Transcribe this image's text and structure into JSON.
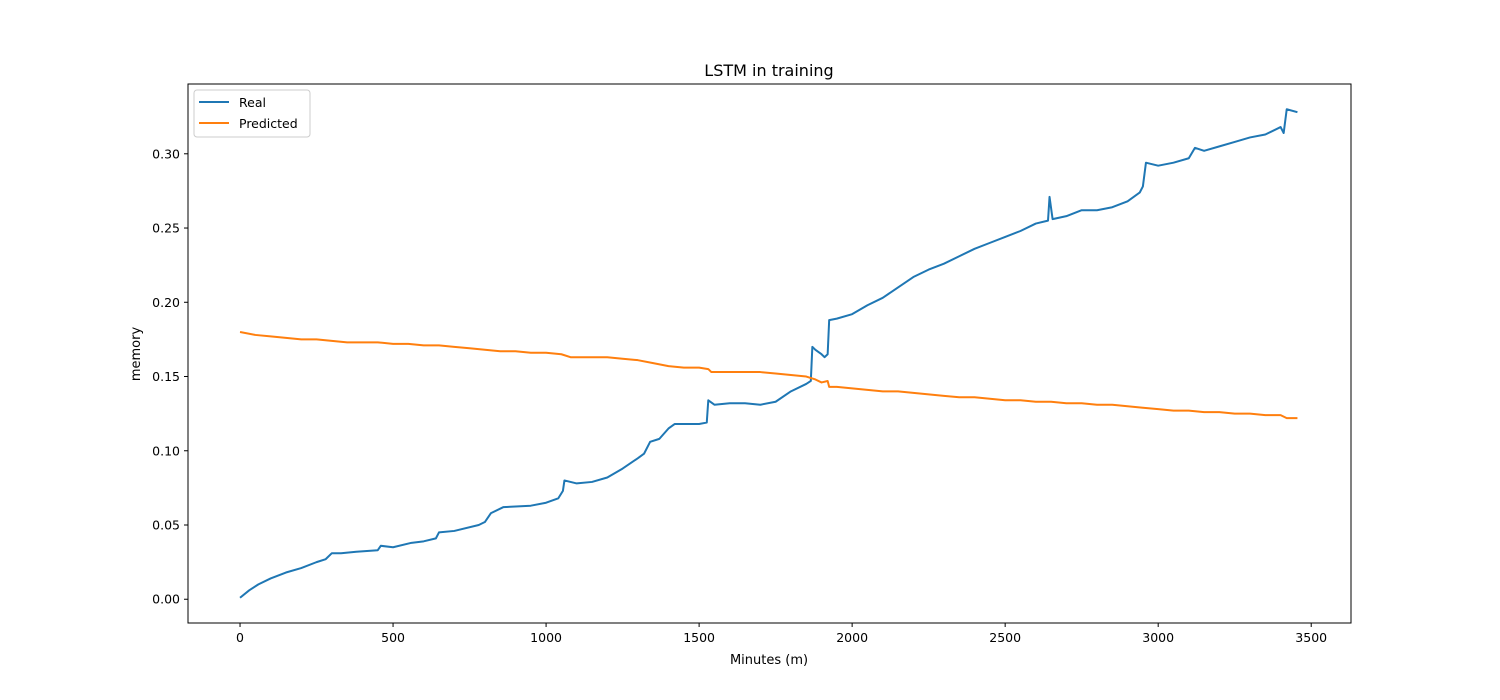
{
  "chart_data": {
    "type": "line",
    "title": "LSTM in training",
    "xlabel": "Minutes (m)",
    "ylabel": "memory",
    "xlim": [
      -170,
      3630
    ],
    "ylim": [
      -0.016,
      0.347
    ],
    "xticks": [
      0,
      500,
      1000,
      1500,
      2000,
      2500,
      3000,
      3500
    ],
    "xtick_labels": [
      "0",
      "500",
      "1000",
      "1500",
      "2000",
      "2500",
      "3000",
      "3500"
    ],
    "yticks": [
      0.0,
      0.05,
      0.1,
      0.15,
      0.2,
      0.25,
      0.3
    ],
    "ytick_labels": [
      "0.00",
      "0.05",
      "0.10",
      "0.15",
      "0.20",
      "0.25",
      "0.30"
    ],
    "grid": false,
    "legend": {
      "position": "top-left",
      "entries": [
        "Real",
        "Predicted"
      ]
    },
    "series": [
      {
        "name": "Real",
        "color": "#1f77b4",
        "x": [
          0,
          30,
          60,
          100,
          150,
          200,
          250,
          280,
          300,
          330,
          380,
          450,
          460,
          500,
          560,
          600,
          640,
          650,
          700,
          780,
          800,
          820,
          860,
          950,
          1000,
          1040,
          1055,
          1060,
          1100,
          1150,
          1200,
          1250,
          1300,
          1320,
          1340,
          1370,
          1400,
          1420,
          1450,
          1500,
          1525,
          1530,
          1550,
          1600,
          1650,
          1700,
          1750,
          1800,
          1850,
          1865,
          1870,
          1880,
          1900,
          1910,
          1920,
          1925,
          1950,
          2000,
          2050,
          2100,
          2150,
          2200,
          2250,
          2300,
          2350,
          2400,
          2450,
          2500,
          2550,
          2600,
          2640,
          2645,
          2655,
          2700,
          2750,
          2800,
          2850,
          2900,
          2940,
          2950,
          2960,
          3000,
          3050,
          3100,
          3120,
          3150,
          3200,
          3250,
          3300,
          3350,
          3400,
          3410,
          3420,
          3455
        ],
        "y": [
          0.001,
          0.006,
          0.01,
          0.014,
          0.018,
          0.021,
          0.025,
          0.027,
          0.031,
          0.031,
          0.032,
          0.033,
          0.036,
          0.035,
          0.038,
          0.039,
          0.041,
          0.045,
          0.046,
          0.05,
          0.052,
          0.058,
          0.062,
          0.063,
          0.065,
          0.068,
          0.073,
          0.08,
          0.078,
          0.079,
          0.082,
          0.088,
          0.095,
          0.098,
          0.106,
          0.108,
          0.115,
          0.118,
          0.118,
          0.118,
          0.119,
          0.134,
          0.131,
          0.132,
          0.132,
          0.131,
          0.133,
          0.14,
          0.145,
          0.147,
          0.17,
          0.168,
          0.165,
          0.163,
          0.165,
          0.188,
          0.189,
          0.192,
          0.198,
          0.203,
          0.21,
          0.217,
          0.222,
          0.226,
          0.231,
          0.236,
          0.24,
          0.244,
          0.248,
          0.253,
          0.255,
          0.271,
          0.256,
          0.258,
          0.262,
          0.262,
          0.264,
          0.268,
          0.274,
          0.278,
          0.294,
          0.292,
          0.294,
          0.297,
          0.304,
          0.302,
          0.305,
          0.308,
          0.311,
          0.313,
          0.318,
          0.314,
          0.33,
          0.328
        ]
      },
      {
        "name": "Predicted",
        "color": "#ff7f0e",
        "x": [
          0,
          50,
          100,
          150,
          200,
          250,
          300,
          350,
          400,
          450,
          500,
          550,
          600,
          650,
          700,
          750,
          800,
          850,
          900,
          950,
          1000,
          1050,
          1080,
          1150,
          1200,
          1250,
          1300,
          1350,
          1400,
          1450,
          1500,
          1530,
          1540,
          1600,
          1650,
          1700,
          1750,
          1800,
          1850,
          1880,
          1900,
          1920,
          1925,
          1950,
          2000,
          2050,
          2100,
          2150,
          2200,
          2250,
          2300,
          2350,
          2400,
          2450,
          2500,
          2550,
          2600,
          2650,
          2700,
          2750,
          2800,
          2850,
          2900,
          2950,
          3000,
          3050,
          3100,
          3150,
          3200,
          3250,
          3300,
          3350,
          3400,
          3410,
          3420,
          3455
        ],
        "y": [
          0.18,
          0.178,
          0.177,
          0.176,
          0.175,
          0.175,
          0.174,
          0.173,
          0.173,
          0.173,
          0.172,
          0.172,
          0.171,
          0.171,
          0.17,
          0.169,
          0.168,
          0.167,
          0.167,
          0.166,
          0.166,
          0.165,
          0.163,
          0.163,
          0.163,
          0.162,
          0.161,
          0.159,
          0.157,
          0.156,
          0.156,
          0.155,
          0.153,
          0.153,
          0.153,
          0.153,
          0.152,
          0.151,
          0.15,
          0.148,
          0.146,
          0.147,
          0.143,
          0.143,
          0.142,
          0.141,
          0.14,
          0.14,
          0.139,
          0.138,
          0.137,
          0.136,
          0.136,
          0.135,
          0.134,
          0.134,
          0.133,
          0.133,
          0.132,
          0.132,
          0.131,
          0.131,
          0.13,
          0.129,
          0.128,
          0.127,
          0.127,
          0.126,
          0.126,
          0.125,
          0.125,
          0.124,
          0.124,
          0.123,
          0.122,
          0.122
        ]
      }
    ]
  }
}
